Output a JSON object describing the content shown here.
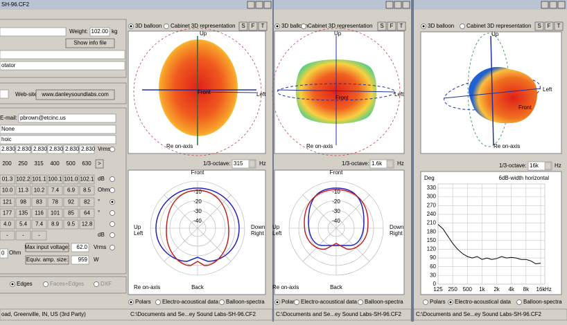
{
  "left_panel": {
    "title": "SH-96.CF2",
    "weight_label": "Weight:",
    "weight": "102.00",
    "weight_unit": "kg",
    "show_info": "Show info file",
    "rotator": "otator",
    "website_label": "Web-site:",
    "website": "www.danleysoundlabs.com",
    "email_label": "E-mail:",
    "email": "pbrown@etcinc.us",
    "field1": "None",
    "field2": "hoic",
    "voltages": [
      "2.830",
      "2.830",
      "2.830",
      "2.830",
      "2.830",
      "2.830"
    ],
    "voltage_unit": "Vrms",
    "freqs": [
      "200",
      "250",
      "315",
      "400",
      "500",
      "630"
    ],
    "next": ">",
    "rows": [
      {
        "cells": [
          "01.3",
          "102.2",
          "101.1",
          "100.1",
          "101.0",
          "102.1"
        ],
        "unit": "dB"
      },
      {
        "cells": [
          "10.0",
          "11.3",
          "10.2",
          "7.4",
          "6.9",
          "8.5"
        ],
        "unit": "Ohm"
      },
      {
        "cells": [
          "121",
          "98",
          "83",
          "78",
          "92",
          "82"
        ],
        "unit": "°"
      },
      {
        "cells": [
          "177",
          "135",
          "116",
          "101",
          "85",
          "64"
        ],
        "unit": "°"
      },
      {
        "cells": [
          "4.0",
          "5.4",
          "7.4",
          "8.9",
          "9.5",
          "12.8"
        ]
      }
    ],
    "dash_cells": [
      "-",
      "-",
      "-"
    ],
    "dash_unit": "dB",
    "impedance": "0",
    "impedance_unit": "Ohm",
    "max_input_label": "Max input voltage:",
    "max_input": "62.0",
    "max_input_unit": "Vrms",
    "amp_label": "Equiv. amp. size:",
    "amp": "959",
    "amp_unit": "W",
    "render_options": [
      "Edges",
      "Faces+Edges",
      "DXF"
    ],
    "status": "oad, Greenville, IN, US (3rd Party)"
  },
  "windows": [
    {
      "tabs": [
        "3D balloon",
        "Cabinet 3D representation"
      ],
      "buttons": [
        "S",
        "F",
        "T"
      ],
      "balloon_labels": {
        "up": "Up",
        "left": "Left",
        "front": "Front",
        "ref": "Re on-axis"
      },
      "octave_label": "1/3-octave:",
      "octave": "315",
      "octave_unit": "Hz",
      "polar": {
        "front": "Front",
        "back": "Back",
        "rings": [
          "-10",
          "-20",
          "-30",
          "-40"
        ],
        "up": "Up",
        "left": "Left",
        "down": "Down",
        "right": "Right",
        "ref": "Re on-axis"
      },
      "bottom_tabs": [
        "Polars",
        "Electro-acoustical data",
        "Balloon-spectra"
      ],
      "status": "C:\\Documents and Se...ey Sound Labs-SH-96.CF2"
    },
    {
      "tabs": [
        "3D balloon",
        "Cabinet 3D representation"
      ],
      "buttons": [
        "S",
        "F",
        "T"
      ],
      "balloon_labels": {
        "up": "Up",
        "left": "Left",
        "front": "Front",
        "ref": "Re on-axis"
      },
      "octave_label": "1/3-octave:",
      "octave": "1.6k",
      "octave_unit": "Hz",
      "polar": {
        "front": "Front",
        "back": "Back",
        "rings": [
          "-10",
          "-20",
          "-30",
          "-40"
        ],
        "up": "Up",
        "left": "Left",
        "down": "Down",
        "right": "Right",
        "ref": "Re on-axis"
      },
      "bottom_tabs": [
        "Polars",
        "Electro-acoustical data",
        "Balloon-spectra"
      ],
      "status": "C:\\Documents and Se...ey Sound Labs-SH-96.CF2"
    },
    {
      "tabs": [
        "3D balloon",
        "Cabinet 3D representation"
      ],
      "buttons": [
        "S",
        "F",
        "T"
      ],
      "balloon_labels": {
        "up": "Up",
        "left": "Left",
        "front": "Front",
        "ref": "Re on-axis"
      },
      "octave_label": "1/3-octave:",
      "octave": "16k",
      "octave_unit": "Hz",
      "chart": {
        "type": "line",
        "title": "6dB-width horizontal",
        "ylabel": "Deg",
        "xlabel": "Hz",
        "categories": [
          "125",
          null,
          null,
          "250",
          null,
          null,
          "500",
          null,
          null,
          "1k",
          null,
          null,
          "2k",
          null,
          null,
          "4k",
          null,
          null,
          "8k",
          null,
          null,
          "16k"
        ],
        "values": [
          205,
          190,
          165,
          140,
          120,
          105,
          95,
          90,
          95,
          85,
          90,
          85,
          88,
          95,
          90,
          92,
          90,
          85,
          85,
          80,
          70,
          72
        ],
        "color": "#000000",
        "ylim": [
          0,
          330
        ],
        "yticks": [
          0,
          30,
          60,
          90,
          120,
          150,
          180,
          210,
          240,
          270,
          300,
          330
        ],
        "grid": true
      },
      "bottom_tabs": [
        "Polars",
        "Electro-acoustical data",
        "Balloon-spectra"
      ],
      "status": "C:\\Documents and Se...ey Sound Labs-SH-96.CF2"
    }
  ]
}
